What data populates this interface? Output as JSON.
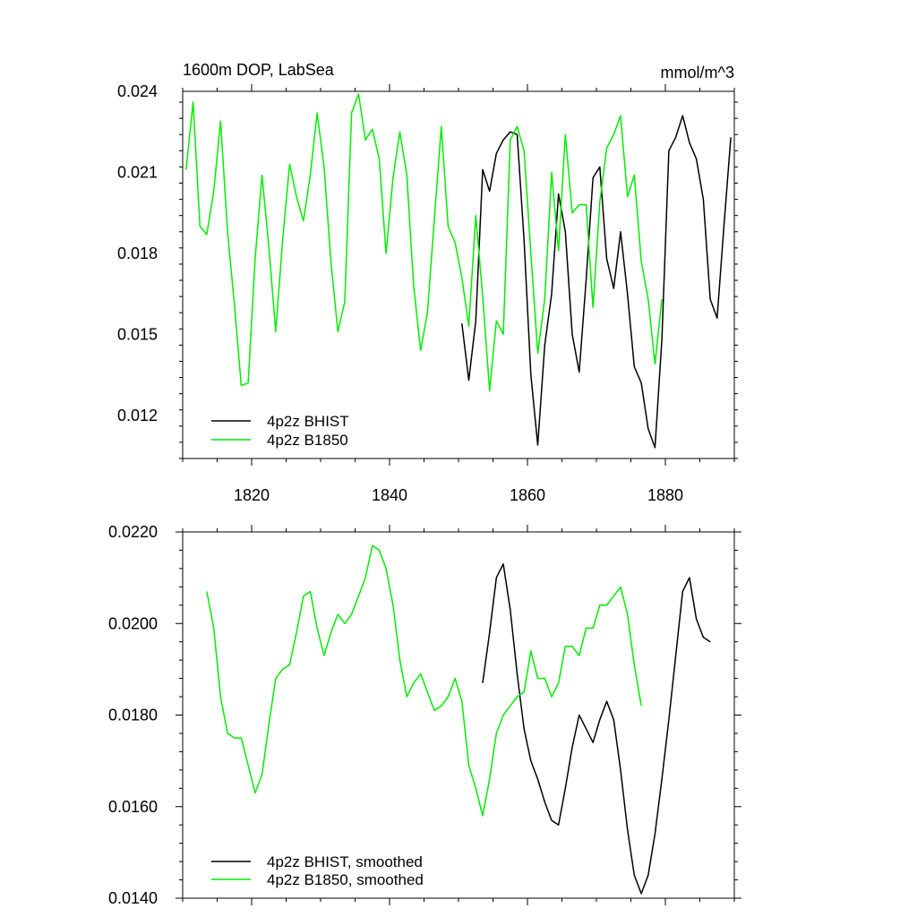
{
  "chart_data": [
    {
      "type": "line",
      "title_left": "1600m DOP, LabSea",
      "title_right": "mmol/m^3",
      "xlabel": "",
      "ylabel": "",
      "xlim": [
        1810,
        1890
      ],
      "ylim": [
        0.0104,
        0.024
      ],
      "xticks": [
        1820,
        1840,
        1860,
        1880
      ],
      "xtick_labels": [
        "1820",
        "1840",
        "1860",
        "1880"
      ],
      "yticks": [
        0.012,
        0.015,
        0.018,
        0.021,
        0.024
      ],
      "ytick_labels": [
        "0.012",
        "0.015",
        "0.018",
        "0.021",
        "0.024"
      ],
      "legend_position": "bottom-left",
      "grid": false,
      "series": [
        {
          "name": "4p2z BHIST",
          "color": "#000000",
          "x": [
            1850.5,
            1851.5,
            1852.5,
            1853.5,
            1854.5,
            1855.5,
            1856.5,
            1857.5,
            1858.5,
            1859.5,
            1860.5,
            1861.5,
            1862.5,
            1863.5,
            1864.5,
            1865.5,
            1866.5,
            1867.5,
            1868.5,
            1869.5,
            1870.5,
            1871.5,
            1872.5,
            1873.5,
            1874.5,
            1875.5,
            1876.5,
            1877.5,
            1878.5,
            1879.5,
            1880.5,
            1881.5,
            1882.5,
            1883.5,
            1884.5,
            1885.5,
            1886.5,
            1887.5,
            1888.5,
            1889.5
          ],
          "y": [
            0.0154,
            0.0133,
            0.0155,
            0.0211,
            0.0203,
            0.0217,
            0.0222,
            0.0225,
            0.0224,
            0.0185,
            0.0135,
            0.0109,
            0.0146,
            0.0165,
            0.0202,
            0.0188,
            0.015,
            0.0136,
            0.017,
            0.0208,
            0.0212,
            0.0178,
            0.0167,
            0.0188,
            0.0165,
            0.0138,
            0.0132,
            0.0115,
            0.0108,
            0.0148,
            0.0218,
            0.0223,
            0.0231,
            0.0221,
            0.0215,
            0.02,
            0.0163,
            0.0156,
            0.019,
            0.0223
          ]
        },
        {
          "name": "4p2z B1850",
          "color": "#00ee00",
          "x": [
            1810.5,
            1811.5,
            1812.5,
            1813.5,
            1814.5,
            1815.5,
            1816.5,
            1817.5,
            1818.5,
            1819.5,
            1820.5,
            1821.5,
            1822.5,
            1823.5,
            1824.5,
            1825.5,
            1826.5,
            1827.5,
            1828.5,
            1829.5,
            1830.5,
            1831.5,
            1832.5,
            1833.5,
            1834.5,
            1835.5,
            1836.5,
            1837.5,
            1838.5,
            1839.5,
            1840.5,
            1841.5,
            1842.5,
            1843.5,
            1844.5,
            1845.5,
            1846.5,
            1847.5,
            1848.5,
            1849.5,
            1850.5,
            1851.5,
            1852.5,
            1853.5,
            1854.5,
            1855.5,
            1856.5,
            1857.5,
            1858.5,
            1859.5,
            1860.5,
            1861.5,
            1862.5,
            1863.5,
            1864.5,
            1865.5,
            1866.5,
            1867.5,
            1868.5,
            1869.5,
            1870.5,
            1871.5,
            1872.5,
            1873.5,
            1874.5,
            1875.5,
            1876.5,
            1877.5,
            1878.5,
            1879.5
          ],
          "y": [
            0.0211,
            0.0236,
            0.019,
            0.0187,
            0.0203,
            0.0229,
            0.0188,
            0.0161,
            0.0131,
            0.0132,
            0.0178,
            0.0209,
            0.0182,
            0.0151,
            0.0185,
            0.0213,
            0.0201,
            0.0192,
            0.0209,
            0.0232,
            0.0212,
            0.0177,
            0.0151,
            0.0162,
            0.0232,
            0.0239,
            0.0222,
            0.0226,
            0.0215,
            0.018,
            0.0208,
            0.0225,
            0.0209,
            0.0168,
            0.0144,
            0.0158,
            0.0193,
            0.0227,
            0.019,
            0.0184,
            0.0171,
            0.0153,
            0.0194,
            0.0164,
            0.0129,
            0.0155,
            0.015,
            0.0222,
            0.0227,
            0.0218,
            0.018,
            0.0143,
            0.0163,
            0.021,
            0.0181,
            0.0224,
            0.0195,
            0.0198,
            0.0198,
            0.016,
            0.0199,
            0.0219,
            0.0224,
            0.0231,
            0.0201,
            0.0209,
            0.0177,
            0.0163,
            0.0139,
            0.0163
          ]
        }
      ]
    },
    {
      "type": "line",
      "xlabel": "",
      "ylabel": "",
      "xlim": [
        1810,
        1890
      ],
      "ylim": [
        0.014,
        0.022
      ],
      "xticks": [
        1820,
        1840,
        1860,
        1880
      ],
      "yticks": [
        0.014,
        0.016,
        0.018,
        0.02,
        0.022
      ],
      "ytick_labels": [
        "0.0140",
        "0.0160",
        "0.0180",
        "0.0200",
        "0.0220"
      ],
      "legend_position": "bottom-left",
      "grid": false,
      "series": [
        {
          "name": "4p2z BHIST, smoothed",
          "color": "#000000",
          "x": [
            1853.5,
            1854.5,
            1855.5,
            1856.5,
            1857.5,
            1858.5,
            1859.5,
            1860.5,
            1861.5,
            1862.5,
            1863.5,
            1864.5,
            1865.5,
            1866.5,
            1867.5,
            1868.5,
            1869.5,
            1870.5,
            1871.5,
            1872.5,
            1873.5,
            1874.5,
            1875.5,
            1876.5,
            1877.5,
            1878.5,
            1879.5,
            1880.5,
            1881.5,
            1882.5,
            1883.5,
            1884.5,
            1885.5,
            1886.5
          ],
          "y": [
            0.0187,
            0.0198,
            0.021,
            0.0213,
            0.0203,
            0.0189,
            0.0177,
            0.017,
            0.0166,
            0.0161,
            0.0157,
            0.0156,
            0.0164,
            0.0173,
            0.018,
            0.0177,
            0.0174,
            0.0179,
            0.0183,
            0.0179,
            0.0168,
            0.0155,
            0.0145,
            0.0141,
            0.0145,
            0.0154,
            0.0166,
            0.0179,
            0.0193,
            0.0207,
            0.021,
            0.0201,
            0.0197,
            0.0196
          ]
        },
        {
          "name": "4p2z B1850, smoothed",
          "color": "#00ee00",
          "x": [
            1813.5,
            1814.5,
            1815.5,
            1816.5,
            1817.5,
            1818.5,
            1819.5,
            1820.5,
            1821.5,
            1822.5,
            1823.5,
            1824.5,
            1825.5,
            1826.5,
            1827.5,
            1828.5,
            1829.5,
            1830.5,
            1831.5,
            1832.5,
            1833.5,
            1834.5,
            1835.5,
            1836.5,
            1837.5,
            1838.5,
            1839.5,
            1840.5,
            1841.5,
            1842.5,
            1843.5,
            1844.5,
            1845.5,
            1846.5,
            1847.5,
            1848.5,
            1849.5,
            1850.5,
            1851.5,
            1852.5,
            1853.5,
            1854.5,
            1855.5,
            1856.5,
            1857.5,
            1858.5,
            1859.5,
            1860.5,
            1861.5,
            1862.5,
            1863.5,
            1864.5,
            1865.5,
            1866.5,
            1867.5,
            1868.5,
            1869.5,
            1870.5,
            1871.5,
            1872.5,
            1873.5,
            1874.5,
            1875.5,
            1876.5
          ],
          "y": [
            0.0207,
            0.0199,
            0.0184,
            0.0176,
            0.0175,
            0.0175,
            0.0169,
            0.0163,
            0.0167,
            0.0178,
            0.0188,
            0.019,
            0.0191,
            0.0198,
            0.0206,
            0.0207,
            0.0199,
            0.0193,
            0.0198,
            0.0202,
            0.02,
            0.0202,
            0.0206,
            0.021,
            0.0217,
            0.0216,
            0.0212,
            0.0204,
            0.0192,
            0.0184,
            0.0187,
            0.0189,
            0.0185,
            0.0181,
            0.0182,
            0.0184,
            0.0188,
            0.0183,
            0.0169,
            0.0164,
            0.0158,
            0.0166,
            0.0176,
            0.018,
            0.0182,
            0.0184,
            0.0185,
            0.0194,
            0.0188,
            0.0188,
            0.0184,
            0.0187,
            0.0195,
            0.0195,
            0.0193,
            0.0199,
            0.0199,
            0.0204,
            0.0204,
            0.0206,
            0.0208,
            0.0202,
            0.0191,
            0.0182
          ]
        }
      ]
    }
  ]
}
